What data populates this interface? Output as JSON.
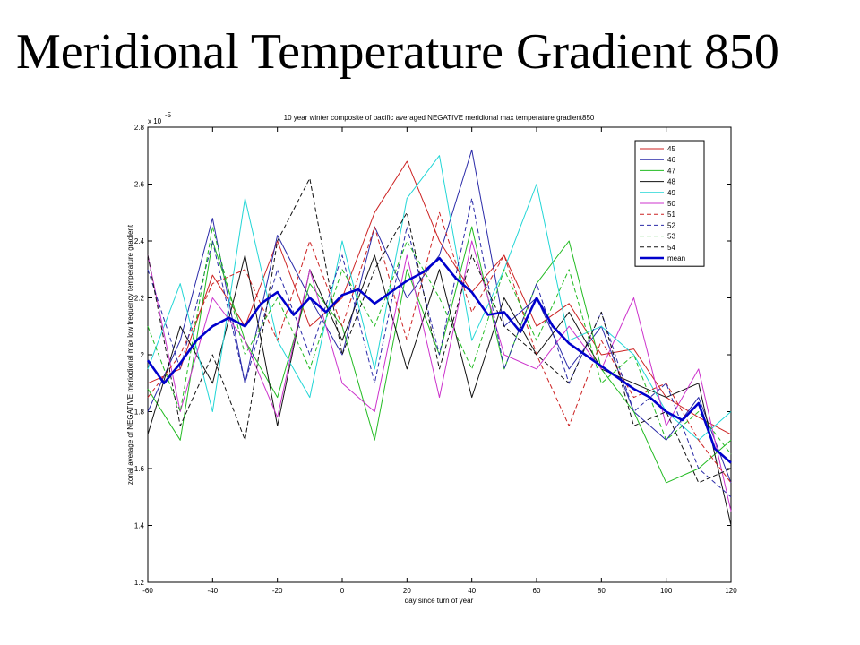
{
  "slide": {
    "title": "Meridional Temperature Gradient 850"
  },
  "chart_data": {
    "type": "line",
    "title": "10 year winter composite of pacific averaged NEGATIVE meridional max temperature gradient850",
    "xlabel": "day since turn of year",
    "ylabel": "zonal average of NEGATIVE meriodional max low frequency temperature gradient",
    "y_multiplier": "x 10",
    "y_exponent": "-5",
    "xlim": [
      -60,
      120
    ],
    "ylim": [
      1.2,
      2.8
    ],
    "x_ticks": [
      "-60",
      "-40",
      "-20",
      "0",
      "20",
      "40",
      "60",
      "80",
      "100",
      "120"
    ],
    "y_ticks": [
      "1.2",
      "1.4",
      "1.6",
      "1.8",
      "2",
      "2.2",
      "2.4",
      "2.6",
      "2.8"
    ],
    "grid": false,
    "legend_position": "top-right",
    "series": [
      {
        "name": "45",
        "color": "#cc2222",
        "style": "solid",
        "x": [
          -60,
          -50,
          -40,
          -30,
          -20,
          -10,
          0,
          10,
          20,
          30,
          40,
          50,
          60,
          70,
          80,
          90,
          100,
          110,
          120
        ],
        "y": [
          1.9,
          1.95,
          2.28,
          2.1,
          2.4,
          2.1,
          2.2,
          2.5,
          2.68,
          2.4,
          2.22,
          2.35,
          2.1,
          2.18,
          2.0,
          2.02,
          1.85,
          1.78,
          1.72
        ]
      },
      {
        "name": "46",
        "color": "#2a2aa8",
        "style": "solid",
        "x": [
          -60,
          -50,
          -40,
          -30,
          -20,
          -10,
          0,
          10,
          20,
          30,
          40,
          50,
          60,
          70,
          80,
          90,
          100,
          110,
          120
        ],
        "y": [
          1.8,
          2.05,
          2.48,
          1.9,
          2.42,
          2.2,
          2.0,
          2.45,
          2.2,
          2.35,
          2.72,
          2.1,
          2.2,
          1.95,
          2.1,
          1.8,
          1.7,
          1.85,
          1.55
        ]
      },
      {
        "name": "47",
        "color": "#22bb22",
        "style": "solid",
        "x": [
          -60,
          -50,
          -40,
          -30,
          -20,
          -10,
          0,
          10,
          20,
          30,
          40,
          50,
          60,
          70,
          80,
          90,
          100,
          110,
          120
        ],
        "y": [
          1.88,
          1.7,
          2.4,
          2.05,
          1.85,
          2.25,
          2.1,
          1.7,
          2.3,
          2.0,
          2.45,
          1.95,
          2.25,
          2.4,
          1.95,
          1.8,
          1.55,
          1.6,
          1.7
        ]
      },
      {
        "name": "48",
        "color": "#111111",
        "style": "solid",
        "x": [
          -60,
          -50,
          -40,
          -30,
          -20,
          -10,
          0,
          10,
          20,
          30,
          40,
          50,
          60,
          70,
          80,
          90,
          100,
          110,
          120
        ],
        "y": [
          1.72,
          2.1,
          1.9,
          2.35,
          1.75,
          2.3,
          2.05,
          2.35,
          1.95,
          2.3,
          1.85,
          2.2,
          2.0,
          2.15,
          1.95,
          1.9,
          1.85,
          1.9,
          1.4
        ]
      },
      {
        "name": "49",
        "color": "#22d6d6",
        "style": "solid",
        "x": [
          -60,
          -50,
          -40,
          -30,
          -20,
          -10,
          0,
          10,
          20,
          30,
          40,
          50,
          60,
          70,
          80,
          90,
          100,
          110,
          120
        ],
        "y": [
          1.95,
          2.25,
          1.8,
          2.55,
          2.05,
          1.85,
          2.4,
          1.95,
          2.55,
          2.7,
          2.05,
          2.3,
          2.6,
          2.05,
          2.1,
          2.0,
          1.8,
          1.7,
          1.8
        ]
      },
      {
        "name": "50",
        "color": "#cc33cc",
        "style": "solid",
        "x": [
          -60,
          -50,
          -40,
          -30,
          -20,
          -10,
          0,
          10,
          20,
          30,
          40,
          50,
          60,
          70,
          80,
          90,
          100,
          110,
          120
        ],
        "y": [
          2.35,
          1.8,
          2.2,
          2.05,
          1.78,
          2.3,
          1.9,
          1.8,
          2.35,
          1.85,
          2.4,
          2.0,
          1.95,
          2.1,
          1.95,
          2.2,
          1.75,
          1.95,
          1.45
        ]
      },
      {
        "name": "51",
        "color": "#cc2222",
        "style": "dashed",
        "x": [
          -60,
          -50,
          -40,
          -30,
          -20,
          -10,
          0,
          10,
          20,
          30,
          40,
          50,
          60,
          70,
          80,
          90,
          100,
          110,
          120
        ],
        "y": [
          1.85,
          2.0,
          2.25,
          2.3,
          2.05,
          2.4,
          2.1,
          2.45,
          2.05,
          2.5,
          2.15,
          2.35,
          2.0,
          1.75,
          2.05,
          1.85,
          1.9,
          1.7,
          1.55
        ]
      },
      {
        "name": "52",
        "color": "#2a2aa8",
        "style": "dashed",
        "x": [
          -60,
          -50,
          -40,
          -30,
          -20,
          -10,
          0,
          10,
          20,
          30,
          40,
          50,
          60,
          70,
          80,
          90,
          100,
          110,
          120
        ],
        "y": [
          2.3,
          1.95,
          2.4,
          1.9,
          2.3,
          2.0,
          2.35,
          1.9,
          2.45,
          2.0,
          2.55,
          1.95,
          2.25,
          1.9,
          2.15,
          1.8,
          1.9,
          1.6,
          1.5
        ]
      },
      {
        "name": "53",
        "color": "#22bb22",
        "style": "dashed",
        "x": [
          -60,
          -50,
          -40,
          -30,
          -20,
          -10,
          0,
          10,
          20,
          30,
          40,
          50,
          60,
          70,
          80,
          90,
          100,
          110,
          120
        ],
        "y": [
          2.1,
          1.8,
          2.45,
          2.0,
          2.2,
          1.95,
          2.3,
          2.1,
          2.4,
          2.2,
          1.95,
          2.3,
          2.05,
          2.3,
          1.9,
          2.0,
          1.7,
          1.8,
          1.65
        ]
      },
      {
        "name": "54",
        "color": "#111111",
        "style": "dashed",
        "x": [
          -60,
          -50,
          -40,
          -30,
          -20,
          -10,
          0,
          10,
          20,
          30,
          40,
          50,
          60,
          70,
          80,
          90,
          100,
          110,
          120
        ],
        "y": [
          2.35,
          1.75,
          2.0,
          1.7,
          2.4,
          2.62,
          2.0,
          2.3,
          2.5,
          1.95,
          2.35,
          2.1,
          2.0,
          1.9,
          2.15,
          1.75,
          1.8,
          1.55,
          1.6
        ]
      },
      {
        "name": "mean",
        "color": "#0000cc",
        "style": "bold",
        "x": [
          -60,
          -55,
          -50,
          -45,
          -40,
          -35,
          -30,
          -25,
          -20,
          -15,
          -10,
          -5,
          0,
          5,
          10,
          15,
          20,
          25,
          30,
          35,
          40,
          45,
          50,
          55,
          60,
          65,
          70,
          75,
          80,
          85,
          90,
          95,
          100,
          105,
          110,
          115,
          120
        ],
        "y": [
          1.98,
          1.9,
          1.97,
          2.05,
          2.1,
          2.13,
          2.1,
          2.18,
          2.22,
          2.14,
          2.2,
          2.15,
          2.21,
          2.23,
          2.18,
          2.22,
          2.26,
          2.29,
          2.34,
          2.27,
          2.22,
          2.14,
          2.15,
          2.08,
          2.2,
          2.1,
          2.04,
          2.0,
          1.96,
          1.92,
          1.88,
          1.85,
          1.8,
          1.77,
          1.83,
          1.67,
          1.62
        ]
      }
    ]
  }
}
